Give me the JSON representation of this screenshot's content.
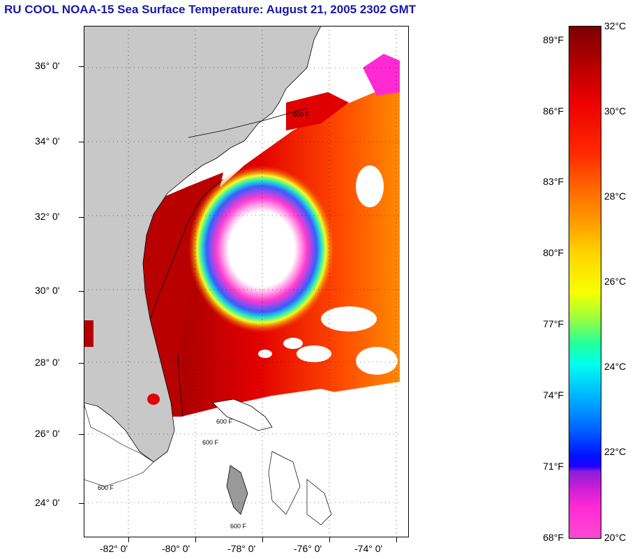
{
  "title": "RU COOL  NOAA-15  Sea Surface Temperature:  August 21, 2005 2302 GMT",
  "map": {
    "lat_labels": [
      "36° 0'",
      "34° 0'",
      "32° 0'",
      "30° 0'",
      "28° 0'",
      "26° 0'",
      "24° 0'"
    ],
    "lon_labels": [
      "-82° 0'",
      "-80° 0'",
      "-78° 0'",
      "-76° 0'",
      "-74° 0'"
    ],
    "contour_labels": [
      "600 F",
      "600 F",
      "600 F",
      "600 F",
      "600 F"
    ],
    "colors": {
      "land": "#c8c8c8",
      "cloud": "#ffffff",
      "hot": "#d40000",
      "warm": "#ff6a00",
      "cool": "#ff2ad4"
    }
  },
  "colorbar": {
    "f_labels": [
      "89°F",
      "86°F",
      "83°F",
      "80°F",
      "77°F",
      "74°F",
      "71°F",
      "68°F"
    ],
    "c_labels": [
      "32°C",
      "30°C",
      "28°C",
      "26°C",
      "24°C",
      "22°C",
      "20°C"
    ]
  }
}
